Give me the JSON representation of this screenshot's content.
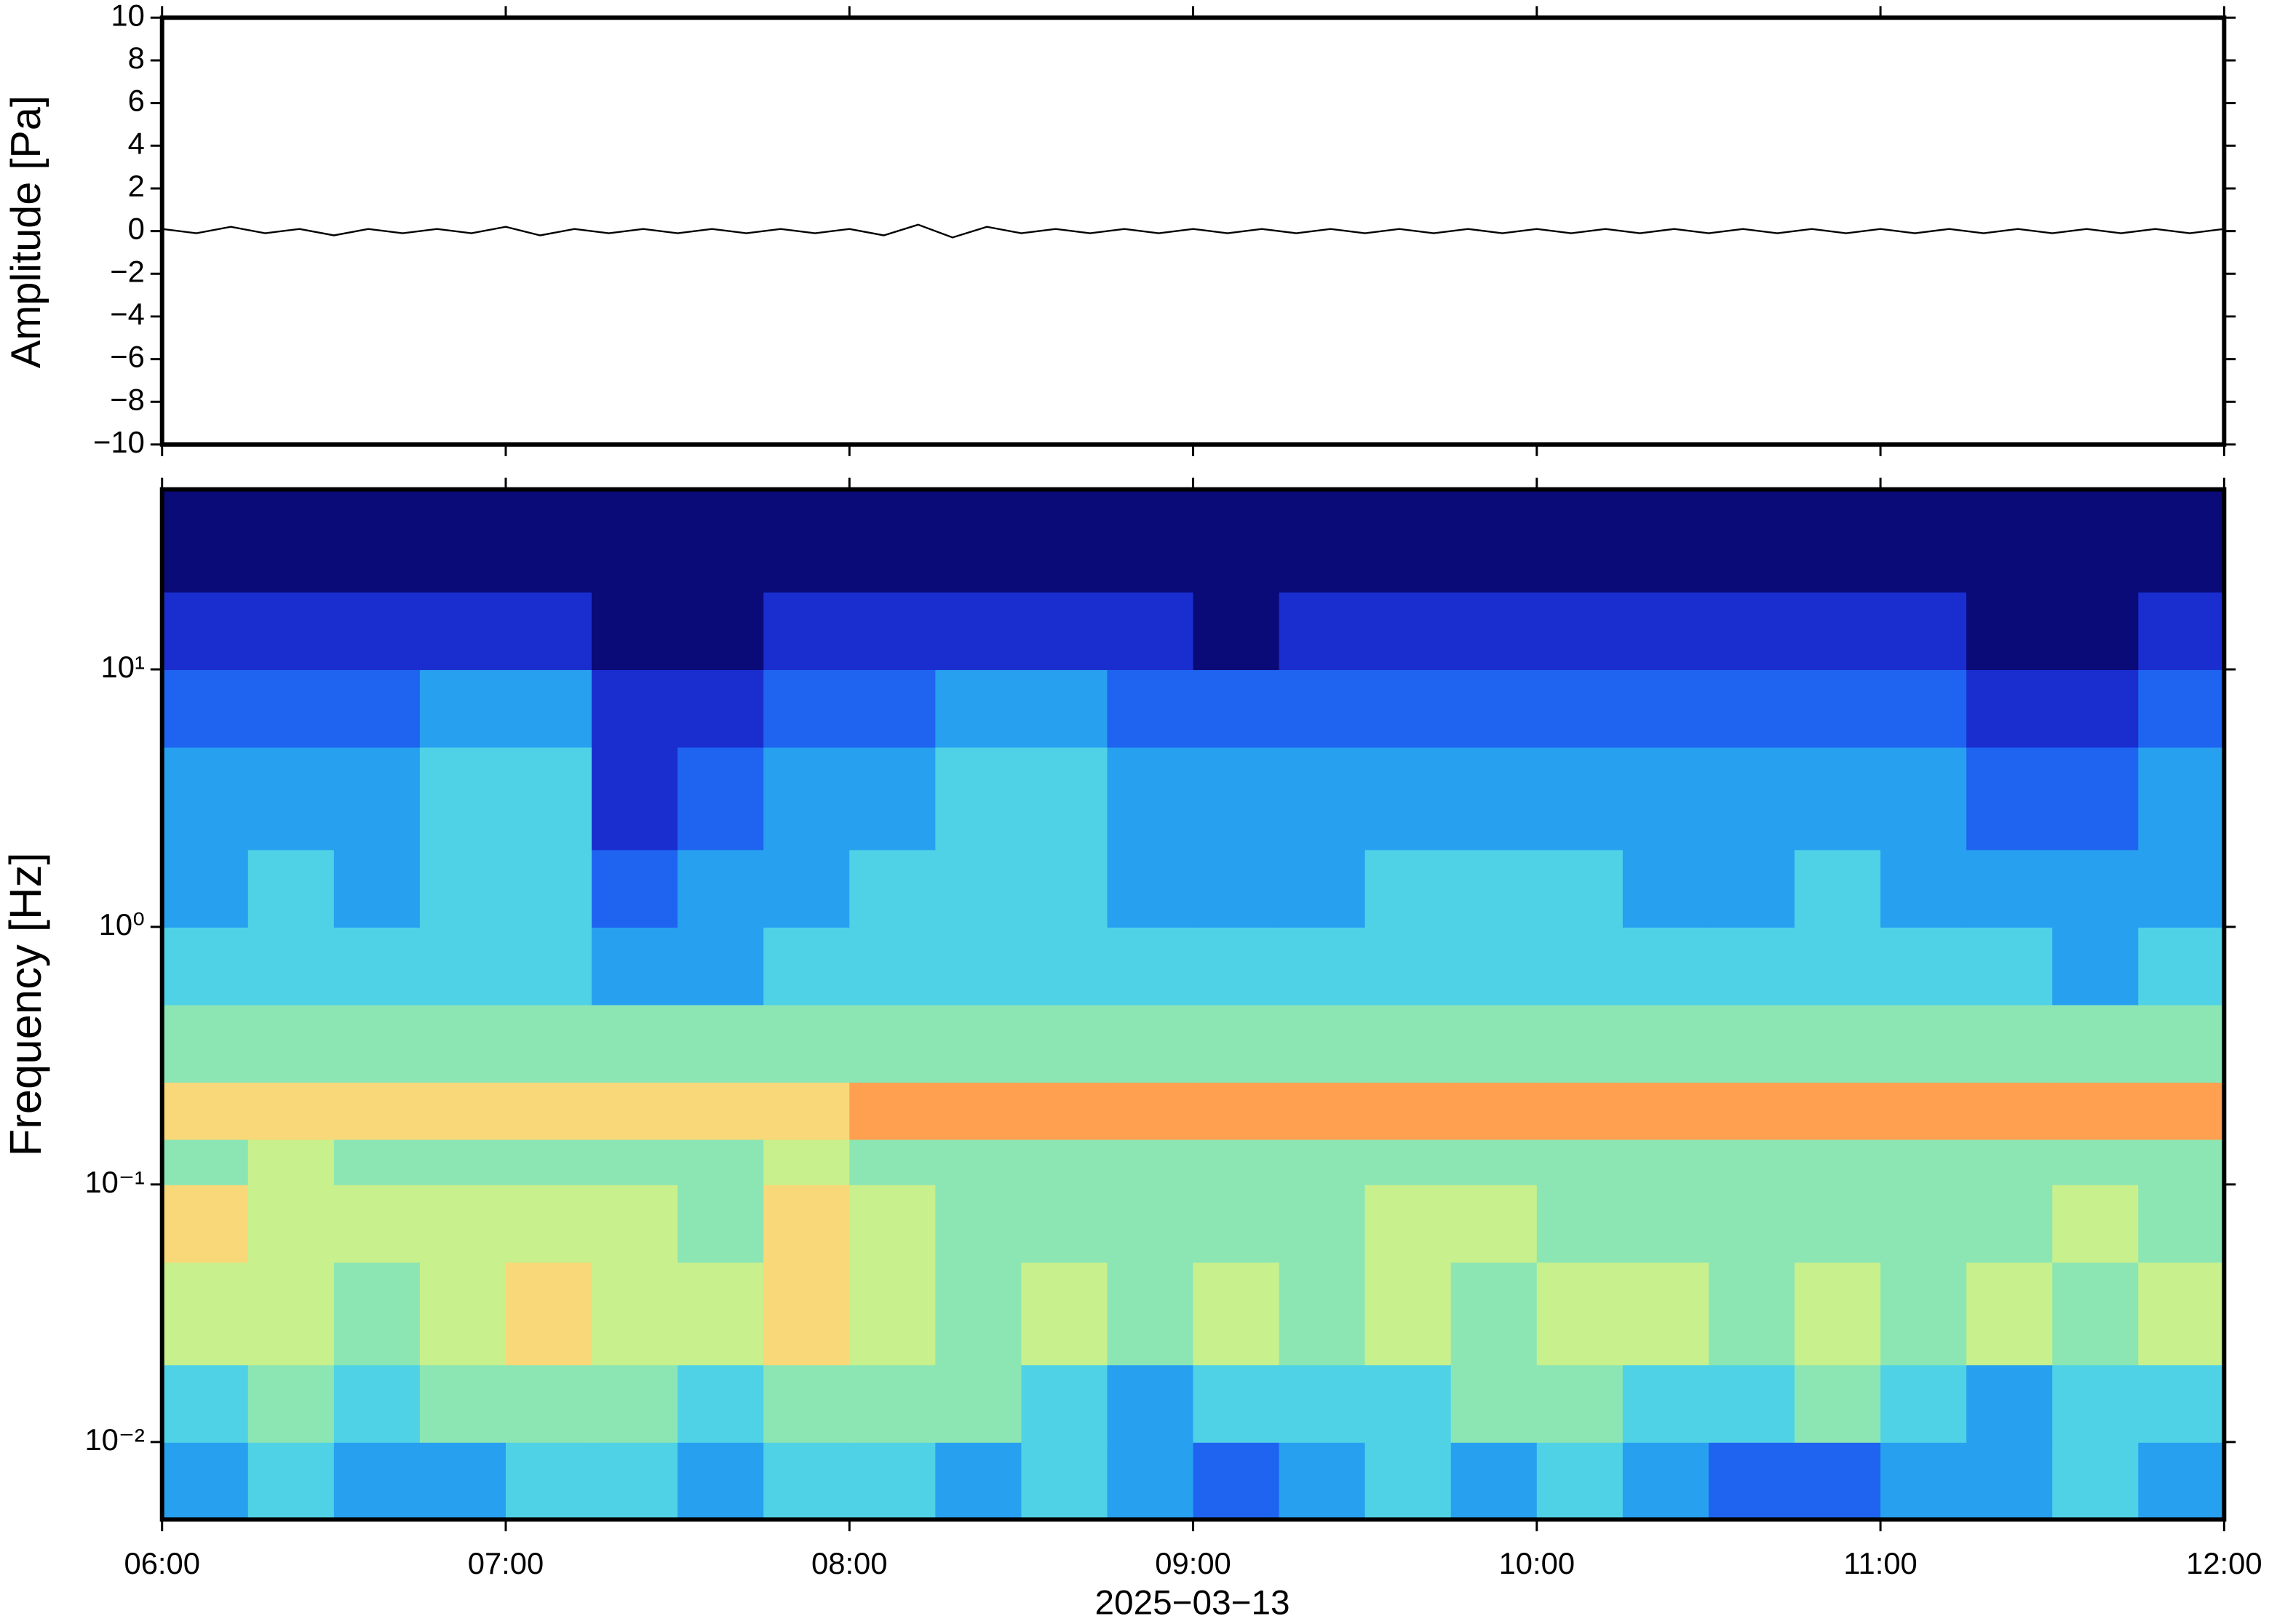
{
  "chart_data": [
    {
      "type": "line",
      "ylabel": "Amplitude [Pa]",
      "x": [
        6.0,
        6.1,
        6.2,
        6.3,
        6.4,
        6.5,
        6.6,
        6.7,
        6.8,
        6.9,
        7.0,
        7.1,
        7.2,
        7.3,
        7.4,
        7.5,
        7.6,
        7.7,
        7.8,
        7.9,
        8.0,
        8.1,
        8.2,
        8.3,
        8.4,
        8.5,
        8.6,
        8.7,
        8.8,
        8.9,
        9.0,
        9.1,
        9.2,
        9.3,
        9.4,
        9.5,
        9.6,
        9.7,
        9.8,
        9.9,
        10.0,
        10.1,
        10.2,
        10.3,
        10.4,
        10.5,
        10.6,
        10.7,
        10.8,
        10.9,
        11.0,
        11.1,
        11.2,
        11.3,
        11.4,
        11.5,
        11.6,
        11.7,
        11.8,
        11.9,
        12.0
      ],
      "series": [
        {
          "name": "Amplitude",
          "color": "#000000",
          "values": [
            0.1,
            -0.1,
            0.2,
            -0.1,
            0.1,
            -0.2,
            0.1,
            -0.1,
            0.1,
            -0.1,
            0.2,
            -0.2,
            0.1,
            -0.1,
            0.1,
            -0.1,
            0.1,
            -0.1,
            0.1,
            -0.1,
            0.1,
            -0.2,
            0.3,
            -0.3,
            0.2,
            -0.1,
            0.1,
            -0.1,
            0.1,
            -0.1,
            0.1,
            -0.1,
            0.1,
            -0.1,
            0.1,
            -0.1,
            0.1,
            -0.1,
            0.1,
            -0.1,
            0.1,
            -0.1,
            0.1,
            -0.1,
            0.1,
            -0.1,
            0.1,
            -0.1,
            0.1,
            -0.1,
            0.1,
            -0.1,
            0.1,
            -0.1,
            0.1,
            -0.1,
            0.1,
            -0.1,
            0.1,
            -0.1,
            0.1
          ]
        }
      ],
      "xlim": [
        6,
        12
      ],
      "xticks": [
        6,
        7,
        8,
        9,
        10,
        11,
        12
      ],
      "ylim": [
        -10,
        10
      ],
      "yticks": [
        {
          "value": -10,
          "label": "−10"
        },
        {
          "value": -8,
          "label": "−8"
        },
        {
          "value": -6,
          "label": "−6"
        },
        {
          "value": -4,
          "label": "−4"
        },
        {
          "value": -2,
          "label": "−2"
        },
        0,
        2,
        4,
        6,
        8,
        10
      ]
    },
    {
      "type": "heatmap",
      "ylabel": "Frequency [Hz]",
      "xlabel": "2025−03−13",
      "log_y": true,
      "x_edges": [
        6,
        6.25,
        6.5,
        6.75,
        7,
        7.25,
        7.5,
        7.75,
        8,
        8.25,
        8.5,
        8.75,
        9,
        9.25,
        9.5,
        9.75,
        10,
        10.25,
        10.5,
        10.75,
        11,
        11.25,
        11.5,
        11.75,
        12
      ],
      "y_edges": [
        0.005,
        0.01,
        0.02,
        0.05,
        0.1,
        0.15,
        0.25,
        0.5,
        1,
        2,
        5,
        10,
        20,
        50
      ],
      "colors": [
        "#0a0a78",
        "#1a2ed0",
        "#1e64f0",
        "#28a0f0",
        "#50d2e6",
        "#8ce6b4",
        "#c8f08c",
        "#f8d878",
        "#ffa050",
        "#f05030"
      ],
      "values": [
        [
          3,
          4,
          3,
          3,
          4,
          4,
          3,
          4,
          4,
          3,
          4,
          3,
          2,
          3,
          4,
          3,
          4,
          3,
          2,
          2,
          3,
          3,
          4,
          3
        ],
        [
          4,
          5,
          4,
          5,
          5,
          5,
          4,
          5,
          5,
          5,
          4,
          3,
          4,
          4,
          4,
          5,
          5,
          4,
          4,
          5,
          4,
          3,
          4,
          4
        ],
        [
          6,
          6,
          5,
          6,
          7,
          6,
          6,
          7,
          6,
          5,
          6,
          5,
          6,
          5,
          6,
          5,
          6,
          6,
          5,
          6,
          5,
          6,
          5,
          6
        ],
        [
          7,
          6,
          6,
          6,
          6,
          6,
          5,
          7,
          6,
          5,
          5,
          5,
          5,
          5,
          6,
          6,
          5,
          5,
          5,
          5,
          5,
          5,
          6,
          5
        ],
        [
          5,
          6,
          5,
          5,
          5,
          5,
          5,
          6,
          5,
          5,
          5,
          5,
          5,
          5,
          5,
          5,
          5,
          5,
          5,
          5,
          5,
          5,
          5,
          5
        ],
        [
          7,
          7,
          7,
          7,
          7,
          7,
          7,
          7,
          8,
          8,
          8,
          8,
          8,
          8,
          8,
          8,
          8,
          8,
          8,
          8,
          8,
          8,
          8,
          8
        ],
        [
          5,
          5,
          5,
          5,
          5,
          5,
          5,
          5,
          5,
          5,
          5,
          5,
          5,
          5,
          5,
          5,
          5,
          5,
          5,
          5,
          5,
          5,
          5,
          5
        ],
        [
          4,
          4,
          4,
          4,
          4,
          3,
          3,
          4,
          4,
          4,
          4,
          4,
          4,
          4,
          4,
          4,
          4,
          4,
          4,
          4,
          4,
          4,
          3,
          4
        ],
        [
          3,
          4,
          3,
          4,
          4,
          2,
          3,
          3,
          4,
          4,
          4,
          3,
          3,
          3,
          4,
          4,
          4,
          3,
          3,
          4,
          3,
          3,
          3,
          3
        ],
        [
          3,
          3,
          3,
          4,
          4,
          1,
          2,
          3,
          3,
          4,
          4,
          3,
          3,
          3,
          3,
          3,
          3,
          3,
          3,
          3,
          3,
          2,
          2,
          3
        ],
        [
          2,
          2,
          2,
          3,
          3,
          1,
          1,
          2,
          2,
          3,
          3,
          2,
          2,
          2,
          2,
          2,
          2,
          2,
          2,
          2,
          2,
          1,
          1,
          2
        ],
        [
          1,
          1,
          1,
          1,
          1,
          0,
          0,
          1,
          1,
          1,
          1,
          1,
          0,
          1,
          1,
          1,
          1,
          1,
          1,
          1,
          1,
          0,
          0,
          1
        ],
        [
          0,
          0,
          0,
          0,
          0,
          0,
          0,
          0,
          0,
          0,
          0,
          0,
          0,
          0,
          0,
          0,
          0,
          0,
          0,
          0,
          0,
          0,
          0,
          0
        ]
      ],
      "xlim": [
        6,
        12
      ],
      "xticks": [
        {
          "value": 6,
          "label": "06:00"
        },
        {
          "value": 7,
          "label": "07:00"
        },
        {
          "value": 8,
          "label": "08:00"
        },
        {
          "value": 9,
          "label": "09:00"
        },
        {
          "value": 10,
          "label": "10:00"
        },
        {
          "value": 11,
          "label": "11:00"
        },
        {
          "value": 12,
          "label": "12:00"
        }
      ],
      "ylim": [
        0.005,
        50
      ],
      "yticks": [
        {
          "value": 0.01,
          "label": "10⁻²"
        },
        {
          "value": 0.1,
          "label": "10⁻¹"
        },
        {
          "value": 1,
          "label": "10⁰"
        },
        {
          "value": 10,
          "label": "10¹"
        }
      ]
    }
  ]
}
